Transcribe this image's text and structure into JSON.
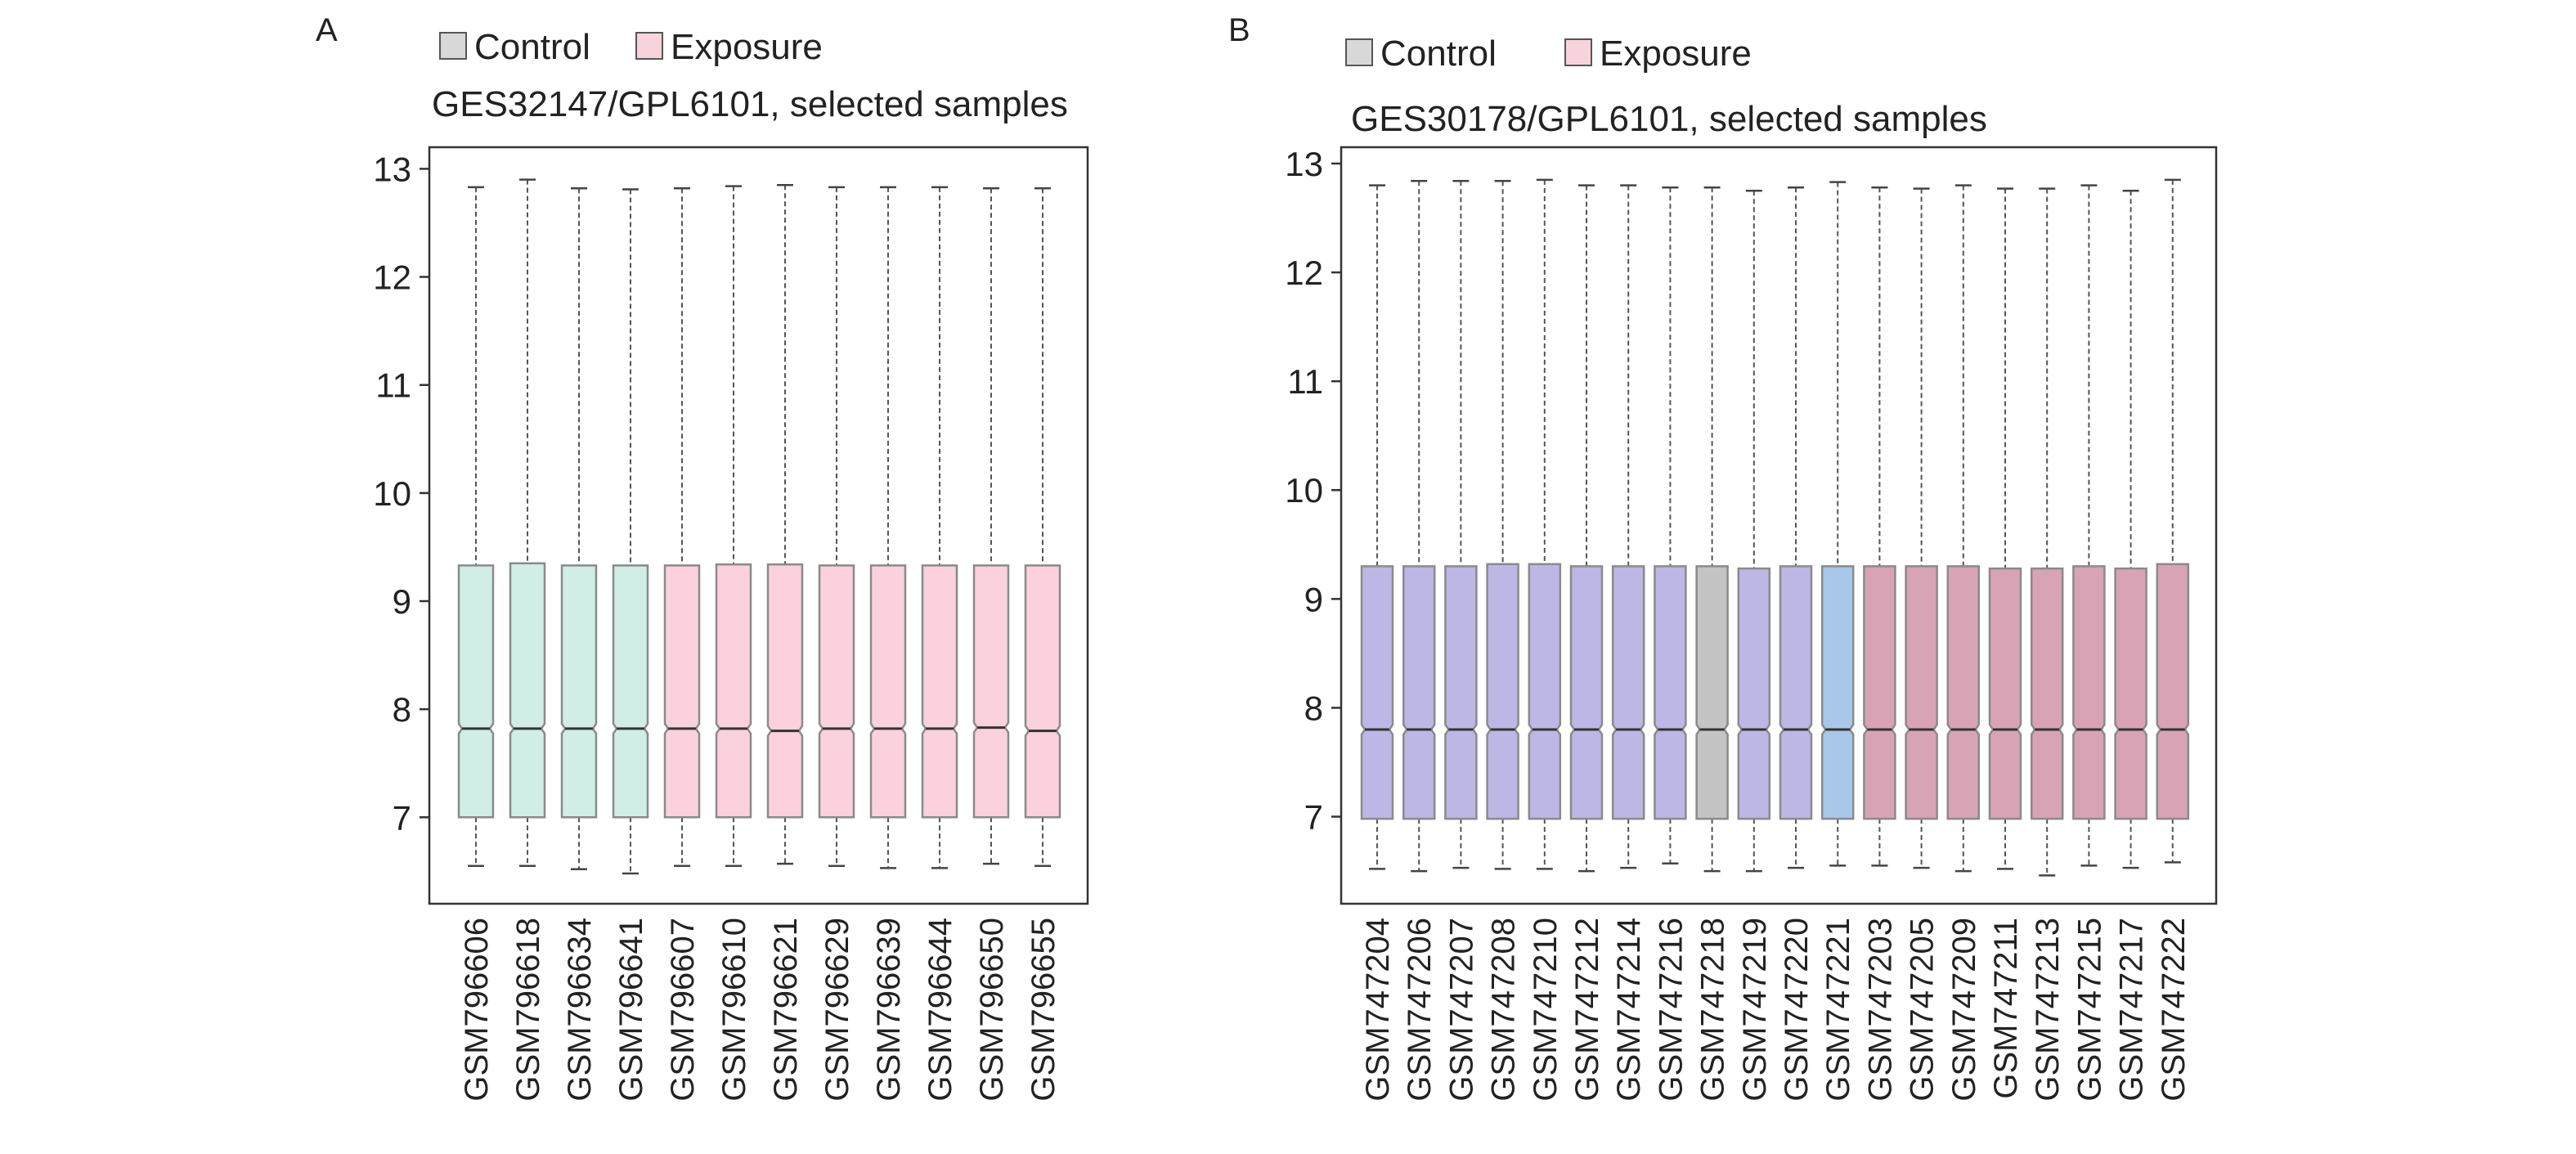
{
  "colors": {
    "control": "#d0ede6",
    "exposure": "#fad1dd",
    "control_b_main": "#bdb7e6",
    "control_b_gray": "#c4c4c4",
    "control_b_blue": "#a9c7e8",
    "exposure_b": "#d8a4b5",
    "box_edge": "#8a8a8a",
    "legend_control": "#d8d8d8",
    "legend_exposure": "#f7d3dc"
  },
  "chart_data": [
    {
      "type": "boxplot",
      "panel_label": "A",
      "title": "GES32147/GPL6101, selected samples",
      "legend": [
        "Control",
        "Exposure"
      ],
      "legend_position": "top",
      "ylim": [
        6.2,
        13.2
      ],
      "yticks": [
        "7",
        "8",
        "9",
        "10",
        "11",
        "12",
        "13"
      ],
      "series": [
        {
          "name": "Control",
          "categories": [
            "GSM796606",
            "GSM796618",
            "GSM796634",
            "GSM796641"
          ],
          "boxes": [
            {
              "min": 6.55,
              "q1": 7.0,
              "median": 7.82,
              "q3": 9.33,
              "max": 12.83
            },
            {
              "min": 6.55,
              "q1": 7.0,
              "median": 7.82,
              "q3": 9.35,
              "max": 12.9
            },
            {
              "min": 6.52,
              "q1": 7.0,
              "median": 7.82,
              "q3": 9.33,
              "max": 12.82
            },
            {
              "min": 6.48,
              "q1": 7.0,
              "median": 7.82,
              "q3": 9.33,
              "max": 12.81
            }
          ]
        },
        {
          "name": "Exposure",
          "categories": [
            "GSM796607",
            "GSM796610",
            "GSM796621",
            "GSM796629",
            "GSM796639",
            "GSM796644",
            "GSM796650",
            "GSM796655"
          ],
          "boxes": [
            {
              "min": 6.55,
              "q1": 7.0,
              "median": 7.82,
              "q3": 9.33,
              "max": 12.82
            },
            {
              "min": 6.55,
              "q1": 7.0,
              "median": 7.82,
              "q3": 9.34,
              "max": 12.84
            },
            {
              "min": 6.57,
              "q1": 7.0,
              "median": 7.8,
              "q3": 9.34,
              "max": 12.85
            },
            {
              "min": 6.55,
              "q1": 7.0,
              "median": 7.82,
              "q3": 9.33,
              "max": 12.83
            },
            {
              "min": 6.53,
              "q1": 7.0,
              "median": 7.82,
              "q3": 9.33,
              "max": 12.83
            },
            {
              "min": 6.53,
              "q1": 7.0,
              "median": 7.82,
              "q3": 9.33,
              "max": 12.83
            },
            {
              "min": 6.57,
              "q1": 7.0,
              "median": 7.83,
              "q3": 9.33,
              "max": 12.82
            },
            {
              "min": 6.55,
              "q1": 7.0,
              "median": 7.8,
              "q3": 9.33,
              "max": 12.82
            }
          ]
        }
      ]
    },
    {
      "type": "boxplot",
      "panel_label": "B",
      "title": "GES30178/GPL6101, selected samples",
      "legend": [
        "Control",
        "Exposure"
      ],
      "legend_position": "top",
      "ylim": [
        6.2,
        13.15
      ],
      "yticks": [
        "7",
        "8",
        "9",
        "10",
        "11",
        "12",
        "13"
      ],
      "series": [
        {
          "name": "Control",
          "categories": [
            "GSM747204",
            "GSM747206",
            "GSM747207",
            "GSM747208",
            "GSM747210",
            "GSM747212",
            "GSM747214",
            "GSM747216",
            "GSM747218",
            "GSM747219",
            "GSM747220",
            "GSM747221"
          ],
          "boxes": [
            {
              "min": 6.52,
              "q1": 6.98,
              "median": 7.8,
              "q3": 9.3,
              "max": 12.8
            },
            {
              "min": 6.5,
              "q1": 6.98,
              "median": 7.8,
              "q3": 9.3,
              "max": 12.84
            },
            {
              "min": 6.53,
              "q1": 6.98,
              "median": 7.8,
              "q3": 9.3,
              "max": 12.84
            },
            {
              "min": 6.52,
              "q1": 6.98,
              "median": 7.8,
              "q3": 9.32,
              "max": 12.84
            },
            {
              "min": 6.52,
              "q1": 6.98,
              "median": 7.8,
              "q3": 9.32,
              "max": 12.85
            },
            {
              "min": 6.5,
              "q1": 6.98,
              "median": 7.8,
              "q3": 9.3,
              "max": 12.8
            },
            {
              "min": 6.53,
              "q1": 6.98,
              "median": 7.8,
              "q3": 9.3,
              "max": 12.8
            },
            {
              "min": 6.57,
              "q1": 6.98,
              "median": 7.8,
              "q3": 9.3,
              "max": 12.78
            },
            {
              "min": 6.5,
              "q1": 6.98,
              "median": 7.8,
              "q3": 9.3,
              "max": 12.78
            },
            {
              "min": 6.5,
              "q1": 6.98,
              "median": 7.8,
              "q3": 9.28,
              "max": 12.75
            },
            {
              "min": 6.53,
              "q1": 6.98,
              "median": 7.8,
              "q3": 9.3,
              "max": 12.78
            },
            {
              "min": 6.55,
              "q1": 6.98,
              "median": 7.8,
              "q3": 9.3,
              "max": 12.83
            }
          ]
        },
        {
          "name": "Exposure",
          "categories": [
            "GSM747203",
            "GSM747205",
            "GSM747209",
            "GSM747211",
            "GSM747213",
            "GSM747215",
            "GSM747217",
            "GSM747222"
          ],
          "boxes": [
            {
              "min": 6.55,
              "q1": 6.98,
              "median": 7.8,
              "q3": 9.3,
              "max": 12.78
            },
            {
              "min": 6.53,
              "q1": 6.98,
              "median": 7.8,
              "q3": 9.3,
              "max": 12.77
            },
            {
              "min": 6.5,
              "q1": 6.98,
              "median": 7.8,
              "q3": 9.3,
              "max": 12.8
            },
            {
              "min": 6.52,
              "q1": 6.98,
              "median": 7.8,
              "q3": 9.28,
              "max": 12.77
            },
            {
              "min": 6.46,
              "q1": 6.98,
              "median": 7.8,
              "q3": 9.28,
              "max": 12.77
            },
            {
              "min": 6.55,
              "q1": 6.98,
              "median": 7.8,
              "q3": 9.3,
              "max": 12.8
            },
            {
              "min": 6.53,
              "q1": 6.98,
              "median": 7.8,
              "q3": 9.28,
              "max": 12.75
            },
            {
              "min": 6.58,
              "q1": 6.98,
              "median": 7.8,
              "q3": 9.32,
              "max": 12.85
            }
          ]
        }
      ]
    }
  ]
}
